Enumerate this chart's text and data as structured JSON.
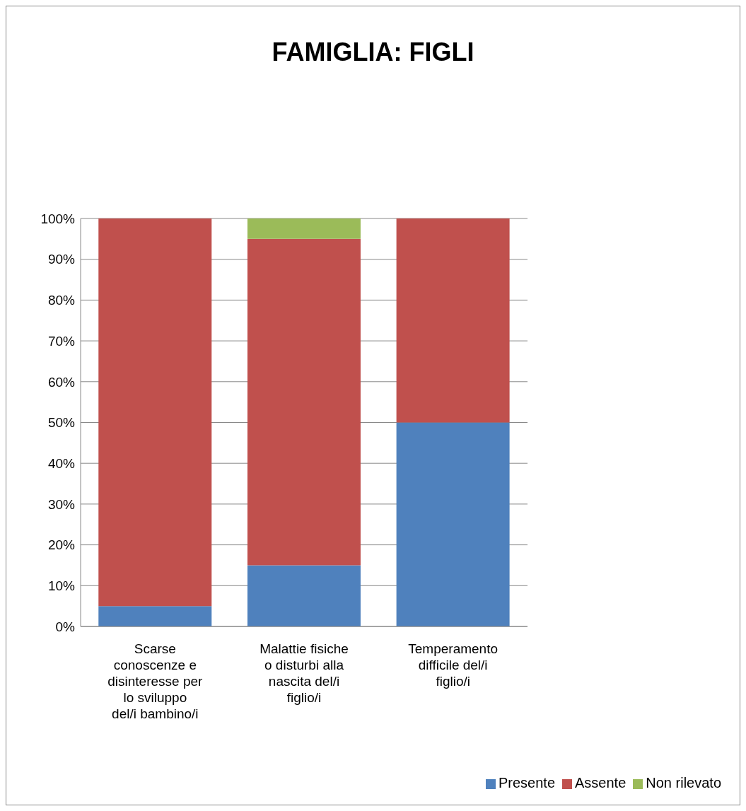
{
  "chart_data": {
    "type": "bar",
    "title": "FAMIGLIA: FIGLI",
    "stacked": true,
    "categories": [
      "Scarse conoscenze e disinteresse per lo sviluppo del/i bambino/i",
      "Malattie fisiche o disturbi alla nascita del/i figlio/i",
      "Temperamento difficile del/i figlio/i"
    ],
    "series": [
      {
        "name": "Presente",
        "color": "#4f81bd",
        "values": [
          5,
          15,
          50
        ]
      },
      {
        "name": "Assente",
        "color": "#c0504d",
        "values": [
          95,
          80,
          50
        ]
      },
      {
        "name": "Non rilevato",
        "color": "#9bbb59",
        "values": [
          0,
          5,
          0
        ]
      }
    ],
    "ylim": [
      0,
      100
    ],
    "yticks": [
      {
        "value": 0,
        "label": "0%"
      },
      {
        "value": 10,
        "label": "10%"
      },
      {
        "value": 20,
        "label": "20%"
      },
      {
        "value": 30,
        "label": "30%"
      },
      {
        "value": 40,
        "label": "40%"
      },
      {
        "value": 50,
        "label": "50%"
      },
      {
        "value": 60,
        "label": "60%"
      },
      {
        "value": 70,
        "label": "70%"
      },
      {
        "value": 80,
        "label": "80%"
      },
      {
        "value": 90,
        "label": "90%"
      },
      {
        "value": 100,
        "label": "100%"
      }
    ],
    "grid": "y",
    "legend": "bottom right"
  }
}
